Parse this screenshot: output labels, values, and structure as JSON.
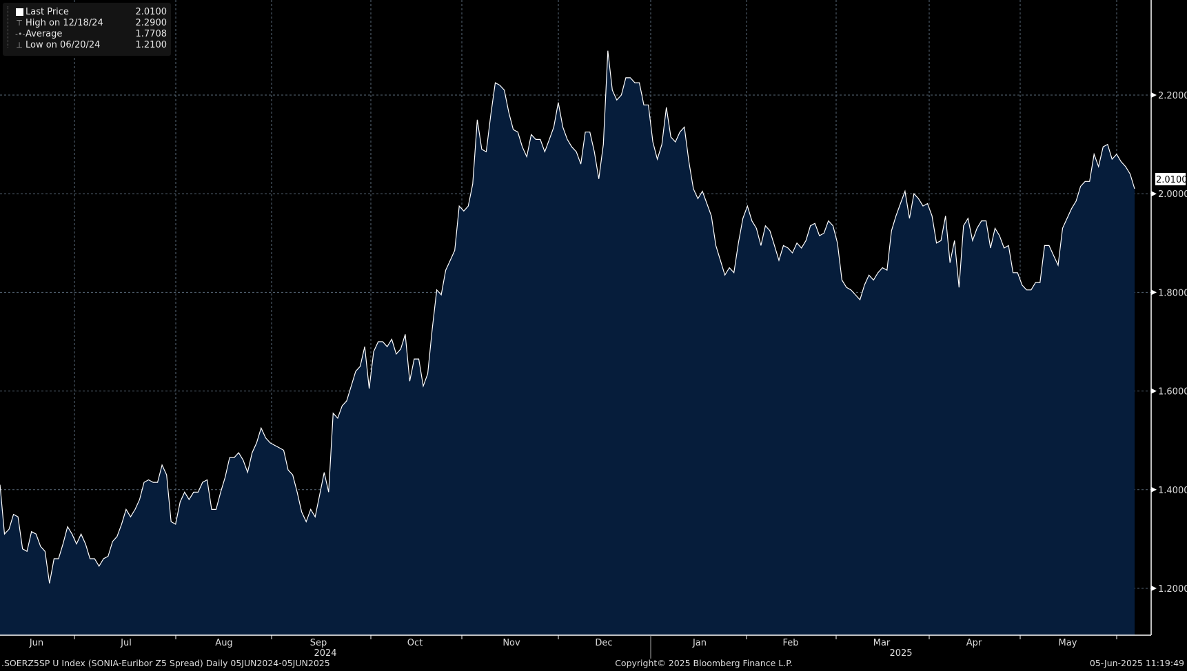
{
  "legend": {
    "rows": [
      {
        "label": "Last Price",
        "value": "2.0100",
        "icon": "white-square-icon"
      },
      {
        "label": "High on 12/18/24",
        "value": "2.2900",
        "icon": "high-marker-icon"
      },
      {
        "label": "Average",
        "value": "1.7708",
        "icon": "average-line-icon"
      },
      {
        "label": "Low on 06/20/24",
        "value": "1.2100",
        "icon": "low-marker-icon"
      }
    ]
  },
  "footer": {
    "left": ".SOERZ5SP U Index (SONIA-Euribor Z5 Spread)  Daily 05JUN2024-05JUN2025",
    "center": "Copyright© 2025 Bloomberg Finance L.P.",
    "right": "05-Jun-2025 11:19:49"
  },
  "colors": {
    "fill": "#061d3b",
    "line": "#ffffff",
    "grid": "#5a6a7a",
    "background": "#000000"
  },
  "chart_data": {
    "type": "area",
    "title": ".SOERZ5SP U Index (SONIA-Euribor Z5 Spread)",
    "ylim": [
      1.1,
      2.4
    ],
    "y_ticks": [
      "1.2000",
      "1.4000",
      "1.6000",
      "1.8000",
      "2.0000",
      "2.2000"
    ],
    "y_tick_values": [
      1.2,
      1.4,
      1.6,
      1.8,
      2.0,
      2.2
    ],
    "last_price_label": "2.0100",
    "last_price": 2.01,
    "x_month_labels": [
      "Jun",
      "Jul",
      "Aug",
      "Sep",
      "Oct",
      "Nov",
      "Dec",
      "Jan",
      "Feb",
      "Mar",
      "Apr",
      "May"
    ],
    "x_year_labels": [
      "2024",
      "2025"
    ],
    "grid": true,
    "values": [
      1.41,
      1.31,
      1.32,
      1.35,
      1.345,
      1.28,
      1.275,
      1.315,
      1.31,
      1.285,
      1.275,
      1.21,
      1.26,
      1.26,
      1.29,
      1.325,
      1.31,
      1.29,
      1.31,
      1.29,
      1.26,
      1.26,
      1.245,
      1.26,
      1.265,
      1.295,
      1.305,
      1.33,
      1.36,
      1.345,
      1.36,
      1.38,
      1.415,
      1.42,
      1.415,
      1.415,
      1.45,
      1.43,
      1.335,
      1.33,
      1.375,
      1.395,
      1.38,
      1.395,
      1.395,
      1.415,
      1.42,
      1.36,
      1.36,
      1.395,
      1.425,
      1.465,
      1.465,
      1.475,
      1.46,
      1.435,
      1.475,
      1.495,
      1.525,
      1.505,
      1.495,
      1.49,
      1.485,
      1.48,
      1.44,
      1.43,
      1.395,
      1.355,
      1.335,
      1.36,
      1.345,
      1.39,
      1.435,
      1.395,
      1.555,
      1.545,
      1.57,
      1.58,
      1.61,
      1.64,
      1.65,
      1.69,
      1.605,
      1.68,
      1.7,
      1.7,
      1.69,
      1.705,
      1.675,
      1.685,
      1.715,
      1.62,
      1.665,
      1.665,
      1.61,
      1.635,
      1.725,
      1.805,
      1.795,
      1.845,
      1.865,
      1.885,
      1.975,
      1.965,
      1.975,
      2.02,
      2.15,
      2.09,
      2.085,
      2.16,
      2.225,
      2.22,
      2.21,
      2.165,
      2.13,
      2.125,
      2.095,
      2.075,
      2.12,
      2.11,
      2.11,
      2.085,
      2.11,
      2.135,
      2.185,
      2.135,
      2.11,
      2.095,
      2.085,
      2.06,
      2.125,
      2.125,
      2.085,
      2.03,
      2.1,
      2.29,
      2.21,
      2.19,
      2.2,
      2.235,
      2.235,
      2.225,
      2.225,
      2.18,
      2.18,
      2.105,
      2.07,
      2.1,
      2.175,
      2.115,
      2.105,
      2.125,
      2.135,
      2.065,
      2.01,
      1.99,
      2.005,
      1.98,
      1.955,
      1.895,
      1.865,
      1.835,
      1.85,
      1.84,
      1.9,
      1.95,
      1.975,
      1.945,
      1.93,
      1.895,
      1.935,
      1.925,
      1.895,
      1.865,
      1.895,
      1.89,
      1.88,
      1.9,
      1.89,
      1.905,
      1.935,
      1.94,
      1.915,
      1.92,
      1.945,
      1.935,
      1.9,
      1.825,
      1.81,
      1.805,
      1.795,
      1.785,
      1.815,
      1.835,
      1.825,
      1.84,
      1.85,
      1.845,
      1.925,
      1.955,
      1.98,
      2.005,
      1.95,
      2.0,
      1.99,
      1.975,
      1.98,
      1.955,
      1.9,
      1.905,
      1.955,
      1.86,
      1.905,
      1.81,
      1.935,
      1.95,
      1.905,
      1.93,
      1.945,
      1.945,
      1.89,
      1.93,
      1.915,
      1.89,
      1.895,
      1.84,
      1.84,
      1.815,
      1.805,
      1.805,
      1.82,
      1.82,
      1.895,
      1.895,
      1.875,
      1.855,
      1.93,
      1.95,
      1.97,
      1.985,
      2.015,
      2.025,
      2.025,
      2.08,
      2.055,
      2.095,
      2.1,
      2.07,
      2.08,
      2.065,
      2.055,
      2.04,
      2.01
    ]
  }
}
